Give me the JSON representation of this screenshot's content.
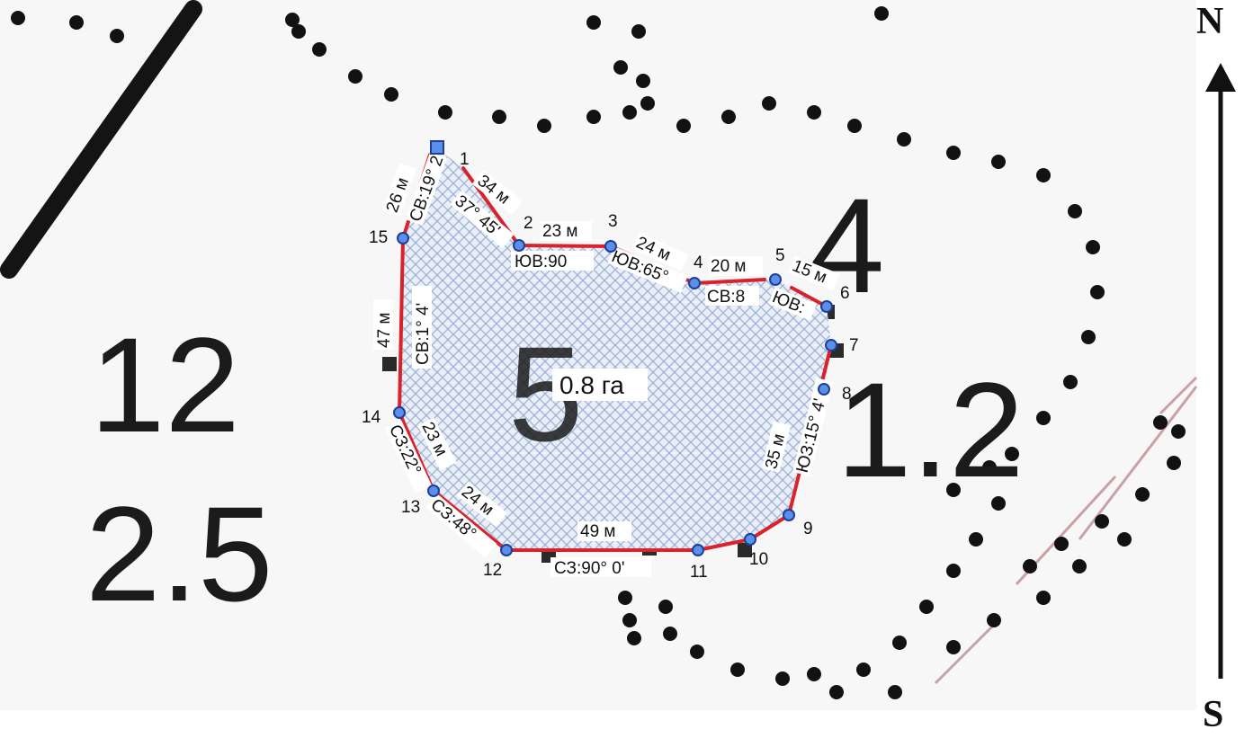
{
  "compass": {
    "north": "N",
    "south": "S"
  },
  "area_label": "0.8 га",
  "parcel_numbers": [
    "12",
    "2.5",
    "5",
    "4",
    "1.2"
  ],
  "vertices": [
    "1",
    "2",
    "3",
    "4",
    "5",
    "6",
    "7",
    "8",
    "9",
    "10",
    "11",
    "12",
    "13",
    "14",
    "15"
  ],
  "segment_lengths": [
    "34 м",
    "23 м",
    "24 м",
    "20 м",
    "15 м",
    "35 м",
    "49 м",
    "24 м",
    "23 м",
    "47 м",
    "26 м"
  ],
  "bearings": [
    "СВ:19° 2",
    "37° 45'",
    "ЮВ:90",
    "ЮВ:65°",
    "СВ:8",
    "ЮВ:",
    "ЮЗ:15° 4'",
    "СЗ:90° 0'",
    "СЗ:48°",
    "СЗ:22°",
    "СВ:1° 4'"
  ],
  "colors": {
    "boundary": "#d9222a",
    "vertex_fill": "#5b8fe8",
    "vertex_stroke": "#1d3f9a",
    "hatch": "#9fb3d6"
  }
}
